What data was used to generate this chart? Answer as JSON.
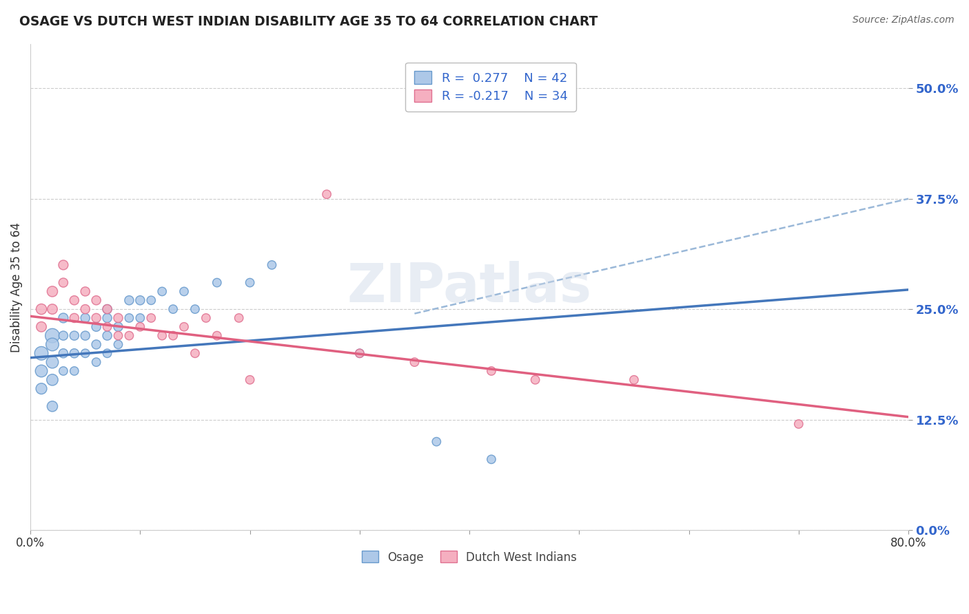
{
  "title": "OSAGE VS DUTCH WEST INDIAN DISABILITY AGE 35 TO 64 CORRELATION CHART",
  "source_text": "Source: ZipAtlas.com",
  "ylabel": "Disability Age 35 to 64",
  "xlim": [
    0.0,
    0.8
  ],
  "ylim": [
    0.0,
    0.55
  ],
  "ytick_vals": [
    0.0,
    0.125,
    0.25,
    0.375,
    0.5
  ],
  "xtick_vals": [
    0.0,
    0.1,
    0.2,
    0.3,
    0.4,
    0.5,
    0.6,
    0.7,
    0.8
  ],
  "osage_color": "#adc8e8",
  "osage_edge": "#6699cc",
  "dutch_color": "#f5afc0",
  "dutch_edge": "#e07090",
  "watermark": "ZIPatlas",
  "trend_color_osage": "#4477bb",
  "trend_color_dutch": "#e06080",
  "ytick_color": "#3366cc",
  "background_color": "#ffffff",
  "grid_color": "#cccccc",
  "fig_width": 14.06,
  "fig_height": 8.92,
  "osage_line_start_y": 0.195,
  "osage_line_end_y": 0.272,
  "dutch_line_start_y": 0.242,
  "dutch_line_end_y": 0.128,
  "dash_line_x1": 0.35,
  "dash_line_y1": 0.245,
  "dash_line_x2": 0.8,
  "dash_line_y2": 0.375,
  "osage_x": [
    0.01,
    0.01,
    0.01,
    0.02,
    0.02,
    0.02,
    0.02,
    0.02,
    0.03,
    0.03,
    0.03,
    0.03,
    0.04,
    0.04,
    0.04,
    0.05,
    0.05,
    0.05,
    0.06,
    0.06,
    0.06,
    0.07,
    0.07,
    0.07,
    0.07,
    0.08,
    0.08,
    0.09,
    0.09,
    0.1,
    0.1,
    0.11,
    0.12,
    0.13,
    0.14,
    0.15,
    0.17,
    0.2,
    0.22,
    0.3,
    0.37,
    0.42
  ],
  "osage_y": [
    0.2,
    0.18,
    0.16,
    0.22,
    0.21,
    0.19,
    0.17,
    0.14,
    0.24,
    0.22,
    0.2,
    0.18,
    0.22,
    0.2,
    0.18,
    0.24,
    0.22,
    0.2,
    0.23,
    0.21,
    0.19,
    0.25,
    0.24,
    0.22,
    0.2,
    0.23,
    0.21,
    0.26,
    0.24,
    0.26,
    0.24,
    0.26,
    0.27,
    0.25,
    0.27,
    0.25,
    0.28,
    0.28,
    0.3,
    0.2,
    0.1,
    0.08
  ],
  "osage_sizes": [
    200,
    160,
    130,
    220,
    180,
    160,
    140,
    120,
    100,
    90,
    90,
    80,
    90,
    90,
    80,
    90,
    90,
    80,
    90,
    90,
    80,
    90,
    90,
    90,
    80,
    90,
    80,
    90,
    80,
    90,
    80,
    80,
    80,
    80,
    80,
    80,
    80,
    80,
    80,
    80,
    80,
    80
  ],
  "dutch_x": [
    0.01,
    0.01,
    0.02,
    0.02,
    0.03,
    0.03,
    0.04,
    0.04,
    0.05,
    0.05,
    0.06,
    0.06,
    0.07,
    0.07,
    0.08,
    0.08,
    0.09,
    0.1,
    0.11,
    0.12,
    0.13,
    0.14,
    0.15,
    0.17,
    0.19,
    0.27,
    0.3,
    0.35,
    0.42,
    0.46,
    0.55,
    0.7,
    0.2,
    0.16
  ],
  "dutch_y": [
    0.25,
    0.23,
    0.27,
    0.25,
    0.3,
    0.28,
    0.26,
    0.24,
    0.27,
    0.25,
    0.26,
    0.24,
    0.25,
    0.23,
    0.24,
    0.22,
    0.22,
    0.23,
    0.24,
    0.22,
    0.22,
    0.23,
    0.2,
    0.22,
    0.24,
    0.38,
    0.2,
    0.19,
    0.18,
    0.17,
    0.17,
    0.12,
    0.17,
    0.24
  ],
  "dutch_sizes": [
    120,
    110,
    120,
    110,
    100,
    90,
    90,
    90,
    90,
    90,
    90,
    90,
    90,
    80,
    90,
    80,
    80,
    80,
    80,
    80,
    80,
    80,
    80,
    80,
    80,
    80,
    80,
    80,
    80,
    80,
    80,
    80,
    80,
    80
  ]
}
